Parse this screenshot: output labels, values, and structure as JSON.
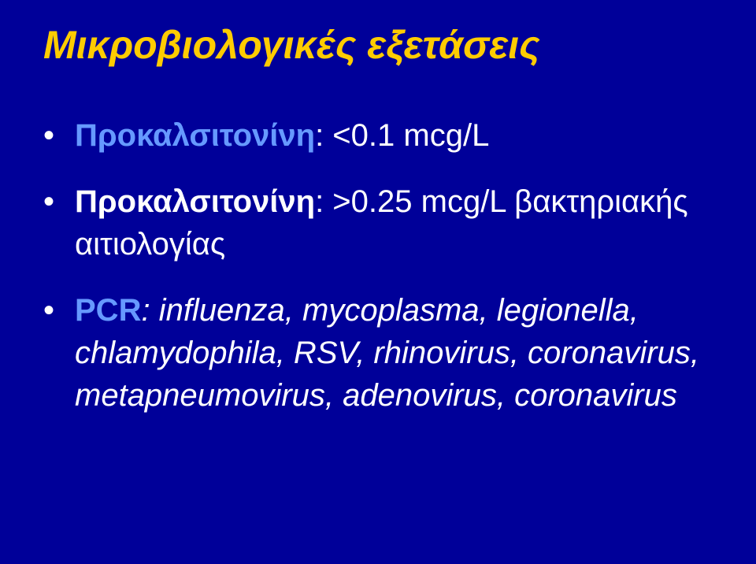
{
  "background_color": "#000099",
  "title": {
    "text": "Μικροβιολογικές εξετάσεις",
    "color": "#ffcc00",
    "font_size_pt": 38,
    "font_weight": "bold",
    "font_style": "italic"
  },
  "bullets": [
    {
      "label": "Προκαλσιτονίνη",
      "label_color": "#6699ff",
      "label_bold": true,
      "rest": ": <0.1 mcg/L",
      "rest_color": "#ffffff",
      "italic": false
    },
    {
      "label": "Προκαλσιτονίνη",
      "label_color": "#ffffff",
      "label_bold": true,
      "rest": ": >0.25 mcg/L βακτηριακής αιτιολογίας",
      "rest_color": "#ffffff",
      "italic": false
    },
    {
      "label": "PCR",
      "label_color": "#6699ff",
      "label_bold": true,
      "rest": ": influenza, mycoplasma, legionella, chlamydophila, RSV, rhinovirus, coronavirus, metapneumovirus, adenovirus, coronavirus",
      "rest_color": "#ffffff",
      "italic": true
    }
  ],
  "bullet_color": "#ffffff",
  "body_font_size_pt": 30
}
